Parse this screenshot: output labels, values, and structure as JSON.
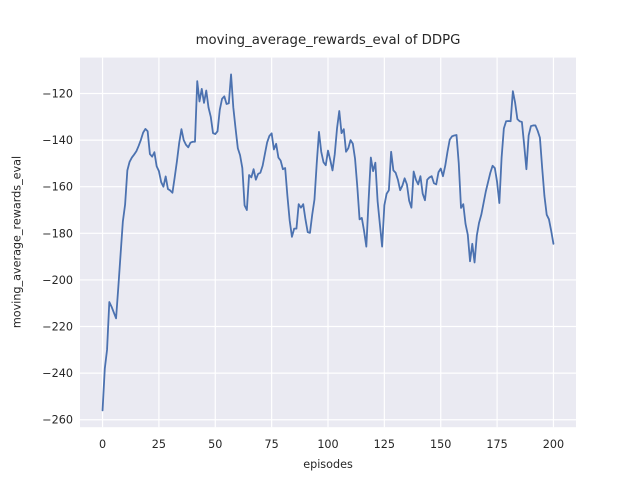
{
  "chart_data": {
    "type": "line",
    "title": "moving_average_rewards_eval of DDPG",
    "xlabel": "episodes",
    "ylabel": "moving_average_rewards_eval",
    "x_start": 0,
    "x_step": 1,
    "values": [
      -256,
      -238,
      -230,
      -209.5,
      -211.5,
      -214,
      -216.5,
      -203,
      -189,
      -175,
      -167.7,
      -153,
      -149.3,
      -147.5,
      -146.2,
      -144.8,
      -142.5,
      -139.9,
      -136.8,
      -135.2,
      -136.2,
      -146,
      -147.1,
      -145.2,
      -151.2,
      -153.3,
      -158,
      -160,
      -155.6,
      -161,
      -161.6,
      -162.6,
      -156,
      -149,
      -141.2,
      -135.3,
      -140,
      -142,
      -143.1,
      -141.1,
      -140.7,
      -140.7,
      -114.7,
      -123.4,
      -118,
      -124,
      -118.7,
      -126,
      -130,
      -137,
      -137.4,
      -136.2,
      -127,
      -122.3,
      -121.2,
      -124.5,
      -124.2,
      -111.8,
      -126,
      -135,
      -143.5,
      -146.5,
      -152,
      -168,
      -170,
      -155,
      -156,
      -152.5,
      -157,
      -154.5,
      -154,
      -151,
      -146,
      -141,
      -138.2,
      -137.1,
      -144,
      -141.6,
      -147.5,
      -148.8,
      -152.5,
      -152,
      -164,
      -174.5,
      -181.5,
      -178,
      -178,
      -167.5,
      -169,
      -167.5,
      -174,
      -179.5,
      -179.8,
      -172,
      -165.5,
      -150,
      -136.5,
      -145,
      -149.5,
      -150.8,
      -144.5,
      -148.5,
      -153,
      -146,
      -135,
      -127.5,
      -137,
      -135.3,
      -145,
      -143.5,
      -140,
      -141.5,
      -148,
      -160,
      -174,
      -173.4,
      -179,
      -185.7,
      -166,
      -147.5,
      -153.3,
      -149.7,
      -166.2,
      -176,
      -185.7,
      -168,
      -163,
      -161.5,
      -145,
      -153,
      -154,
      -157,
      -161.5,
      -159.5,
      -156.4,
      -159,
      -166,
      -169,
      -153.5,
      -157,
      -159,
      -155.5,
      -163,
      -165.8,
      -157,
      -156,
      -155.5,
      -158.5,
      -159,
      -153.8,
      -152.2,
      -155.5,
      -151,
      -145,
      -139.8,
      -138.4,
      -138,
      -137.8,
      -150,
      -169.1,
      -167.5,
      -176,
      -180.6,
      -192,
      -184.5,
      -192.5,
      -181,
      -175.5,
      -172,
      -167,
      -162,
      -158,
      -154,
      -151,
      -152,
      -158,
      -167,
      -147.5,
      -135,
      -131.9,
      -131.8,
      -131.9,
      -119,
      -124,
      -131,
      -131.9,
      -132.2,
      -142,
      -152.5,
      -138,
      -134,
      -133.7,
      -133.7,
      -136,
      -139,
      -152,
      -164,
      -172,
      -174,
      -179,
      -184.5
    ],
    "xlim": [
      -10,
      210
    ],
    "ylim": [
      -263.21,
      -104.59
    ],
    "xticks": [
      0,
      25,
      50,
      75,
      100,
      125,
      150,
      175,
      200
    ],
    "xtick_labels": [
      "0",
      "25",
      "50",
      "75",
      "100",
      "125",
      "150",
      "175",
      "200"
    ],
    "yticks": [
      -260,
      -240,
      -220,
      -200,
      -180,
      -160,
      -140,
      -120
    ],
    "ytick_labels": [
      "−260",
      "−240",
      "−220",
      "−200",
      "−180",
      "−160",
      "−140",
      "−120"
    ],
    "grid": true,
    "legend_position": "none",
    "style": {
      "line_color": "#4C72B0",
      "axes_background": "#EAEAF2",
      "grid_color": "#FFFFFF",
      "figure_background": "#FFFFFF",
      "text_color": "#262626"
    }
  }
}
